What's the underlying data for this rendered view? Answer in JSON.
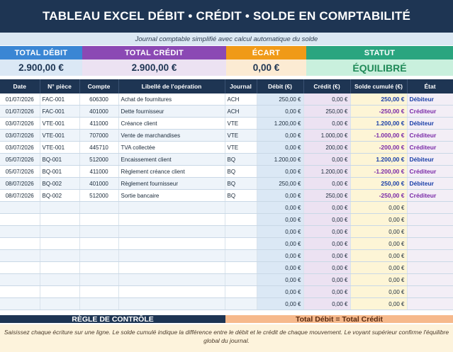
{
  "title": "TABLEAU EXCEL DÉBIT • CRÉDIT • SOLDE EN COMPTABILITÉ",
  "subtitle": "Journal comptable simplifié avec calcul automatique du solde",
  "kpis": {
    "total_debit": {
      "label": "TOTAL DÉBIT",
      "value": "2.900,00 €"
    },
    "total_credit": {
      "label": "TOTAL CRÉDIT",
      "value": "2.900,00 €"
    },
    "ecart": {
      "label": "ÉCART",
      "value": "0,00 €"
    },
    "statut": {
      "label": "STATUT",
      "value": "ÉQUILIBRÉ"
    }
  },
  "columns": [
    "Date",
    "N° pièce",
    "Compte",
    "Libellé de l'opération",
    "Journal",
    "Débit (€)",
    "Crédit (€)",
    "Solde cumulé (€)",
    "État"
  ],
  "rows": [
    {
      "date": "01/07/2026",
      "piece": "FAC-001",
      "compte": "606300",
      "libelle": "Achat de fournitures",
      "journal": "ACH",
      "debit": "250,00 €",
      "credit": "0,00 €",
      "solde": "250,00 €",
      "sign": "pos",
      "etat": "Débiteur"
    },
    {
      "date": "01/07/2026",
      "piece": "FAC-001",
      "compte": "401000",
      "libelle": "Dette fournisseur",
      "journal": "ACH",
      "debit": "0,00 €",
      "credit": "250,00 €",
      "solde": "-250,00 €",
      "sign": "neg",
      "etat": "Créditeur"
    },
    {
      "date": "03/07/2026",
      "piece": "VTE-001",
      "compte": "411000",
      "libelle": "Créance client",
      "journal": "VTE",
      "debit": "1.200,00 €",
      "credit": "0,00 €",
      "solde": "1.200,00 €",
      "sign": "pos",
      "etat": "Débiteur"
    },
    {
      "date": "03/07/2026",
      "piece": "VTE-001",
      "compte": "707000",
      "libelle": "Vente de marchandises",
      "journal": "VTE",
      "debit": "0,00 €",
      "credit": "1.000,00 €",
      "solde": "-1.000,00 €",
      "sign": "neg",
      "etat": "Créditeur"
    },
    {
      "date": "03/07/2026",
      "piece": "VTE-001",
      "compte": "445710",
      "libelle": "TVA collectée",
      "journal": "VTE",
      "debit": "0,00 €",
      "credit": "200,00 €",
      "solde": "-200,00 €",
      "sign": "neg",
      "etat": "Créditeur"
    },
    {
      "date": "05/07/2026",
      "piece": "BQ-001",
      "compte": "512000",
      "libelle": "Encaissement client",
      "journal": "BQ",
      "debit": "1.200,00 €",
      "credit": "0,00 €",
      "solde": "1.200,00 €",
      "sign": "pos",
      "etat": "Débiteur"
    },
    {
      "date": "05/07/2026",
      "piece": "BQ-001",
      "compte": "411000",
      "libelle": "Règlement créance client",
      "journal": "BQ",
      "debit": "0,00 €",
      "credit": "1.200,00 €",
      "solde": "-1.200,00 €",
      "sign": "neg",
      "etat": "Créditeur"
    },
    {
      "date": "08/07/2026",
      "piece": "BQ-002",
      "compte": "401000",
      "libelle": "Règlement fournisseur",
      "journal": "BQ",
      "debit": "250,00 €",
      "credit": "0,00 €",
      "solde": "250,00 €",
      "sign": "pos",
      "etat": "Débiteur"
    },
    {
      "date": "08/07/2026",
      "piece": "BQ-002",
      "compte": "512000",
      "libelle": "Sortie bancaire",
      "journal": "BQ",
      "debit": "0,00 €",
      "credit": "250,00 €",
      "solde": "-250,00 €",
      "sign": "neg",
      "etat": "Créditeur"
    },
    {
      "date": "",
      "piece": "",
      "compte": "",
      "libelle": "",
      "journal": "",
      "debit": "0,00 €",
      "credit": "0,00 €",
      "solde": "0,00 €",
      "sign": "zero",
      "etat": ""
    },
    {
      "date": "",
      "piece": "",
      "compte": "",
      "libelle": "",
      "journal": "",
      "debit": "0,00 €",
      "credit": "0,00 €",
      "solde": "0,00 €",
      "sign": "zero",
      "etat": ""
    },
    {
      "date": "",
      "piece": "",
      "compte": "",
      "libelle": "",
      "journal": "",
      "debit": "0,00 €",
      "credit": "0,00 €",
      "solde": "0,00 €",
      "sign": "zero",
      "etat": ""
    },
    {
      "date": "",
      "piece": "",
      "compte": "",
      "libelle": "",
      "journal": "",
      "debit": "0,00 €",
      "credit": "0,00 €",
      "solde": "0,00 €",
      "sign": "zero",
      "etat": ""
    },
    {
      "date": "",
      "piece": "",
      "compte": "",
      "libelle": "",
      "journal": "",
      "debit": "0,00 €",
      "credit": "0,00 €",
      "solde": "0,00 €",
      "sign": "zero",
      "etat": ""
    },
    {
      "date": "",
      "piece": "",
      "compte": "",
      "libelle": "",
      "journal": "",
      "debit": "0,00 €",
      "credit": "0,00 €",
      "solde": "0,00 €",
      "sign": "zero",
      "etat": ""
    },
    {
      "date": "",
      "piece": "",
      "compte": "",
      "libelle": "",
      "journal": "",
      "debit": "0,00 €",
      "credit": "0,00 €",
      "solde": "0,00 €",
      "sign": "zero",
      "etat": ""
    },
    {
      "date": "",
      "piece": "",
      "compte": "",
      "libelle": "",
      "journal": "",
      "debit": "0,00 €",
      "credit": "0,00 €",
      "solde": "0,00 €",
      "sign": "zero",
      "etat": ""
    },
    {
      "date": "",
      "piece": "",
      "compte": "",
      "libelle": "",
      "journal": "",
      "debit": "0,00 €",
      "credit": "0,00 €",
      "solde": "0,00 €",
      "sign": "zero",
      "etat": ""
    }
  ],
  "rule": {
    "left": "RÈGLE DE CONTRÔLE",
    "right": "Total Débit = Total Crédit"
  },
  "footer": "Saisissez chaque écriture sur une ligne. Le solde cumulé indique la différence entre le débit et le crédit de chaque mouvement. Le voyant supérieur confirme l'équilibre global du journal.",
  "colors": {
    "header": "#1e3553",
    "debit": "#3a86d4",
    "credit": "#8b49b4",
    "ecart": "#f09a17",
    "statut": "#2aa57f"
  }
}
